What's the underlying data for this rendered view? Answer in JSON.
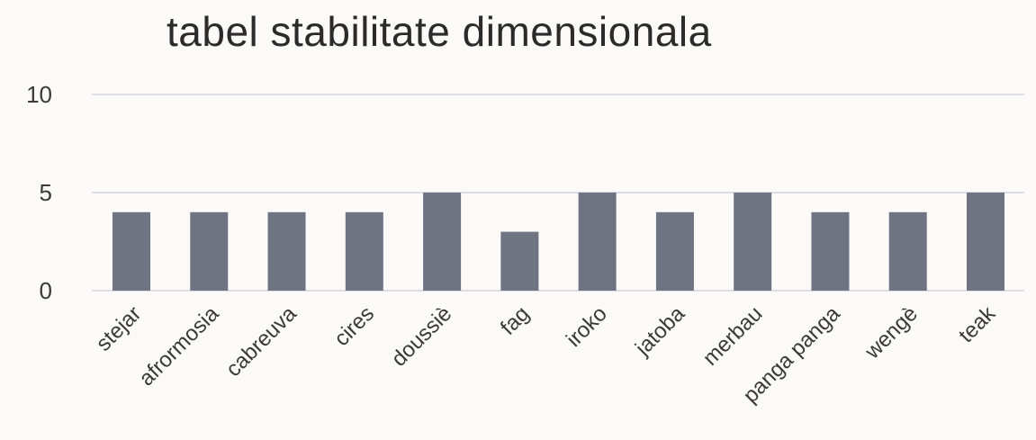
{
  "chart_data": {
    "type": "bar",
    "title": "tabel stabilitate dimensionala",
    "xlabel": "",
    "ylabel": "",
    "categories": [
      "stejar",
      "afrormosia",
      "cabreuva",
      "cires",
      "doussiè",
      "fag",
      "iroko",
      "jatoba",
      "merbau",
      "panga panga",
      "wengè",
      "teak"
    ],
    "values": [
      4,
      4,
      4,
      4,
      5,
      3,
      5,
      4,
      5,
      4,
      4,
      5
    ],
    "ylim": [
      0,
      10
    ],
    "yticks": [
      "0",
      "5",
      "10"
    ],
    "grid": true,
    "legend": "none",
    "bar_color": "#6f7482"
  }
}
